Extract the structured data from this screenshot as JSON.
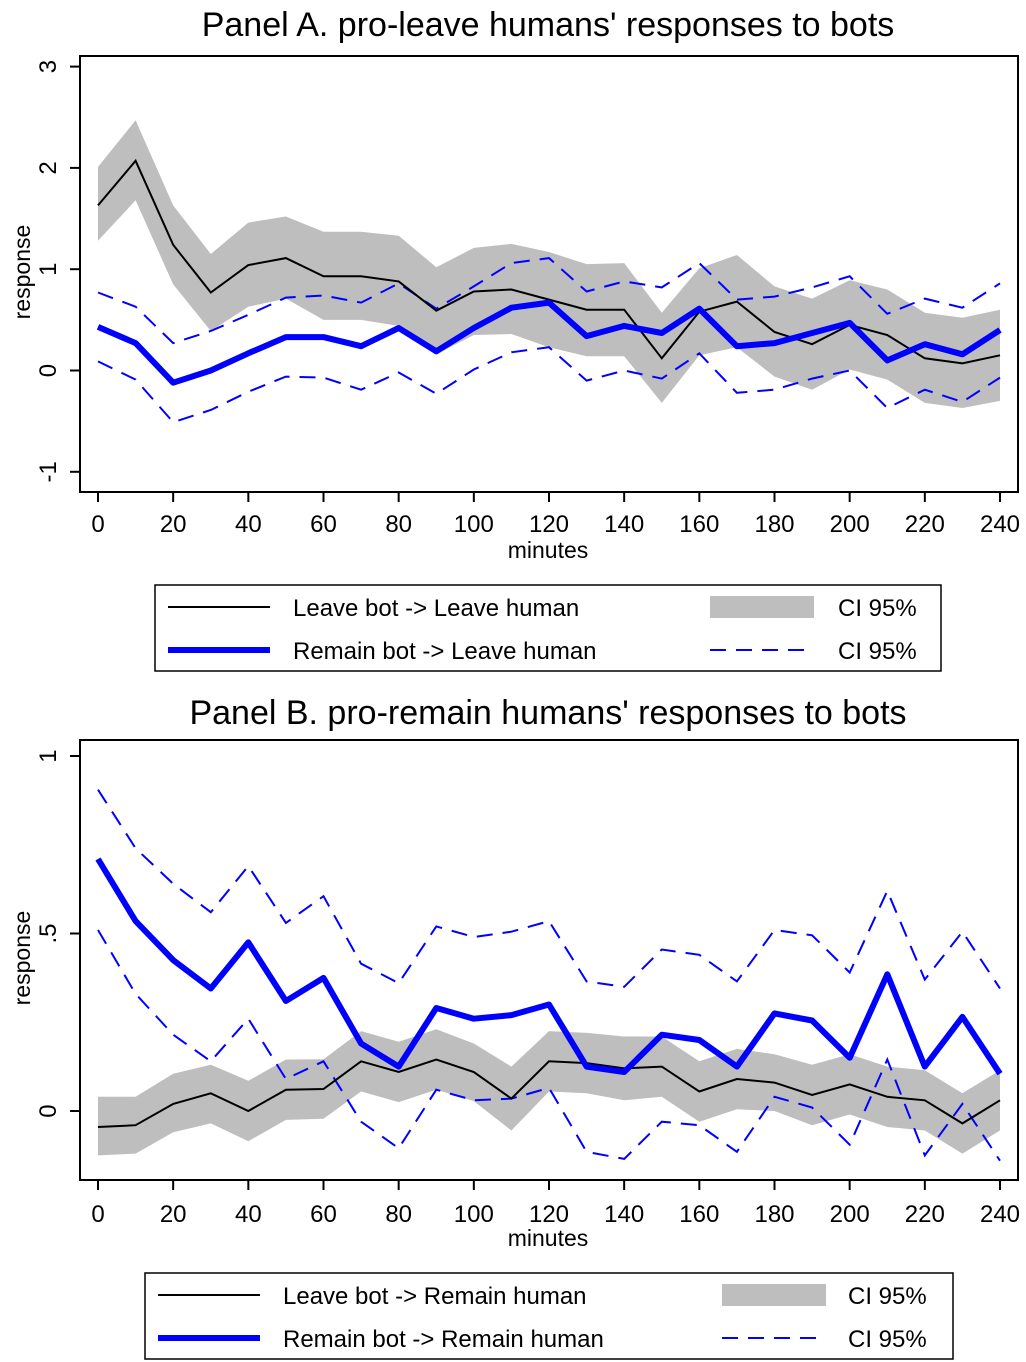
{
  "chart_data": [
    {
      "type": "line",
      "title": "Panel A. pro-leave humans' responses to bots",
      "xlabel": "minutes",
      "ylabel": "response",
      "xlim": [
        0,
        240
      ],
      "ylim": [
        -1,
        3
      ],
      "xticks": [
        "0",
        "20",
        "40",
        "60",
        "80",
        "100",
        "120",
        "140",
        "160",
        "180",
        "200",
        "220",
        "240"
      ],
      "yticks": [
        "-1",
        "0",
        "1",
        "2",
        "3"
      ],
      "x": [
        0,
        10,
        20,
        30,
        40,
        50,
        60,
        70,
        80,
        90,
        100,
        110,
        120,
        130,
        140,
        150,
        160,
        170,
        180,
        190,
        200,
        210,
        220,
        230,
        240
      ],
      "series": [
        {
          "name": "Leave bot -> Leave human",
          "color": "#000000",
          "values": [
            1.63,
            2.07,
            1.24,
            0.77,
            1.04,
            1.11,
            0.93,
            0.93,
            0.88,
            0.59,
            0.78,
            0.8,
            0.7,
            0.6,
            0.6,
            0.12,
            0.58,
            0.68,
            0.38,
            0.26,
            0.45,
            0.35,
            0.12,
            0.07,
            0.15
          ],
          "ci_lower": [
            1.28,
            1.68,
            0.85,
            0.39,
            0.63,
            0.71,
            0.5,
            0.5,
            0.44,
            0.16,
            0.35,
            0.36,
            0.23,
            0.14,
            0.14,
            -0.32,
            0.15,
            0.23,
            -0.06,
            -0.19,
            0.01,
            -0.09,
            -0.32,
            -0.37,
            -0.3
          ],
          "ci_upper": [
            2.01,
            2.47,
            1.63,
            1.15,
            1.46,
            1.52,
            1.37,
            1.37,
            1.33,
            1.02,
            1.21,
            1.25,
            1.17,
            1.05,
            1.06,
            0.57,
            1.01,
            1.14,
            0.83,
            0.71,
            0.89,
            0.8,
            0.57,
            0.52,
            0.6
          ]
        },
        {
          "name": "Remain bot -> Leave human",
          "color": "#0000ff",
          "values": [
            0.43,
            0.27,
            -0.12,
            0.0,
            0.17,
            0.33,
            0.33,
            0.24,
            0.42,
            0.19,
            0.42,
            0.62,
            0.67,
            0.34,
            0.44,
            0.37,
            0.61,
            0.24,
            0.27,
            0.37,
            0.47,
            0.1,
            0.26,
            0.16,
            0.4
          ],
          "ci_lower": [
            0.09,
            -0.09,
            -0.51,
            -0.39,
            -0.21,
            -0.06,
            -0.07,
            -0.19,
            -0.02,
            -0.23,
            0.01,
            0.18,
            0.23,
            -0.1,
            0.0,
            -0.08,
            0.17,
            -0.22,
            -0.19,
            -0.08,
            0.0,
            -0.37,
            -0.19,
            -0.31,
            -0.07
          ],
          "ci_upper": [
            0.77,
            0.63,
            0.27,
            0.39,
            0.55,
            0.72,
            0.74,
            0.67,
            0.86,
            0.61,
            0.83,
            1.06,
            1.11,
            0.78,
            0.88,
            0.82,
            1.06,
            0.7,
            0.73,
            0.82,
            0.93,
            0.56,
            0.71,
            0.62,
            0.86
          ]
        }
      ],
      "legend": [
        {
          "label": "Leave bot -> Leave human",
          "style": "thin-black-line"
        },
        {
          "label": "CI 95%",
          "style": "gray-band"
        },
        {
          "label": "Remain bot -> Leave human",
          "style": "thick-blue-line"
        },
        {
          "label": "CI 95%",
          "style": "dashed-blue-line"
        }
      ],
      "legend_position": "bottom",
      "grid": false
    },
    {
      "type": "line",
      "title": "Panel B. pro-remain humans' responses to bots",
      "xlabel": "minutes",
      "ylabel": "response",
      "xlim": [
        0,
        240
      ],
      "ylim": [
        -0.15,
        1
      ],
      "xticks": [
        "0",
        "20",
        "40",
        "60",
        "80",
        "100",
        "120",
        "140",
        "160",
        "180",
        "200",
        "220",
        "240"
      ],
      "yticks": [
        "0",
        ".5",
        "1"
      ],
      "x": [
        0,
        10,
        20,
        30,
        40,
        50,
        60,
        70,
        80,
        90,
        100,
        110,
        120,
        130,
        140,
        150,
        160,
        170,
        180,
        190,
        200,
        210,
        220,
        230,
        240
      ],
      "series": [
        {
          "name": "Leave bot -> Remain human",
          "color": "#000000",
          "values": [
            -0.045,
            -0.04,
            0.02,
            0.05,
            0.0,
            0.06,
            0.062,
            0.14,
            0.11,
            0.145,
            0.11,
            0.035,
            0.14,
            0.135,
            0.12,
            0.125,
            0.055,
            0.09,
            0.08,
            0.045,
            0.075,
            0.04,
            0.03,
            -0.035,
            0.03
          ],
          "ci_lower": [
            -0.125,
            -0.12,
            -0.06,
            -0.035,
            -0.085,
            -0.025,
            -0.022,
            0.055,
            0.025,
            0.06,
            0.028,
            -0.055,
            0.055,
            0.05,
            0.03,
            0.04,
            -0.03,
            0.005,
            0.0,
            -0.04,
            -0.01,
            -0.045,
            -0.055,
            -0.12,
            -0.055
          ],
          "ci_upper": [
            0.04,
            0.04,
            0.105,
            0.13,
            0.085,
            0.145,
            0.146,
            0.225,
            0.195,
            0.23,
            0.19,
            0.125,
            0.225,
            0.22,
            0.21,
            0.21,
            0.14,
            0.175,
            0.16,
            0.13,
            0.16,
            0.125,
            0.115,
            0.05,
            0.115
          ]
        },
        {
          "name": "Remain bot -> Remain human",
          "color": "#0000ff",
          "values": [
            0.71,
            0.535,
            0.425,
            0.345,
            0.475,
            0.31,
            0.375,
            0.19,
            0.125,
            0.29,
            0.26,
            0.27,
            0.3,
            0.125,
            0.11,
            0.215,
            0.2,
            0.125,
            0.275,
            0.255,
            0.15,
            0.385,
            0.125,
            0.265,
            0.105
          ],
          "ci_lower": [
            0.51,
            0.33,
            0.215,
            0.14,
            0.26,
            0.09,
            0.14,
            -0.03,
            -0.105,
            0.06,
            0.03,
            0.035,
            0.065,
            -0.115,
            -0.135,
            -0.03,
            -0.04,
            -0.115,
            0.04,
            0.01,
            -0.095,
            0.145,
            -0.125,
            0.02,
            -0.14
          ],
          "ci_upper": [
            0.905,
            0.74,
            0.64,
            0.56,
            0.69,
            0.53,
            0.605,
            0.415,
            0.36,
            0.52,
            0.49,
            0.505,
            0.535,
            0.365,
            0.35,
            0.455,
            0.44,
            0.365,
            0.51,
            0.495,
            0.39,
            0.62,
            0.37,
            0.505,
            0.345
          ]
        }
      ],
      "legend": [
        {
          "label": "Leave bot -> Remain human",
          "style": "thin-black-line"
        },
        {
          "label": "CI 95%",
          "style": "gray-band"
        },
        {
          "label": "Remain bot -> Remain human",
          "style": "thick-blue-line"
        },
        {
          "label": "CI 95%",
          "style": "dashed-blue-line"
        }
      ],
      "legend_position": "bottom",
      "grid": false
    }
  ]
}
